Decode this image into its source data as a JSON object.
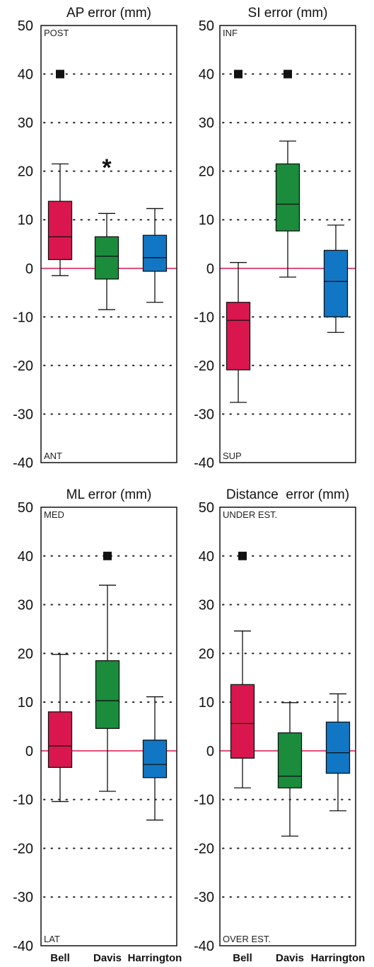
{
  "chart_data": [
    {
      "type": "box",
      "title": "AP error (mm)",
      "top_label": "POST",
      "bottom_label": "ANT",
      "ylim": [
        -40,
        50
      ],
      "yticks": [
        -40,
        -30,
        -20,
        -10,
        0,
        10,
        20,
        30,
        40,
        50
      ],
      "grid": "dotted horizontal at 10 mm steps",
      "reference_line": 0,
      "categories": [
        "Bell",
        "Davis",
        "Harrington"
      ],
      "boxes": [
        {
          "category": "Bell",
          "color": "#D9174E",
          "whisker_low": -1.5,
          "q1": 1.8,
          "median": 6.5,
          "q3": 13.8,
          "whisker_high": 21.5,
          "outliers": [
            40
          ]
        },
        {
          "category": "Davis",
          "color": "#1A8C3C",
          "whisker_low": -8.5,
          "q1": -2.2,
          "median": 2.5,
          "q3": 6.5,
          "whisker_high": 11.3,
          "outliers": []
        },
        {
          "category": "Harrington",
          "color": "#1177C4",
          "whisker_low": -7.0,
          "q1": -0.6,
          "median": 2.2,
          "q3": 6.8,
          "whisker_high": 12.3,
          "outliers": []
        }
      ],
      "annotations": [
        {
          "text": "*",
          "category": "Davis",
          "y": 22
        }
      ]
    },
    {
      "type": "box",
      "title": "SI error (mm)",
      "top_label": "INF",
      "bottom_label": "SUP",
      "ylim": [
        -40,
        50
      ],
      "yticks": [
        -40,
        -30,
        -20,
        -10,
        0,
        10,
        20,
        30,
        40,
        50
      ],
      "grid": "dotted horizontal at 10 mm steps",
      "reference_line": 0,
      "categories": [
        "Bell",
        "Davis",
        "Harrington"
      ],
      "boxes": [
        {
          "category": "Bell",
          "color": "#D9174E",
          "whisker_low": -27.6,
          "q1": -20.9,
          "median": -10.7,
          "q3": -7.0,
          "whisker_high": 1.2,
          "outliers": [
            40
          ]
        },
        {
          "category": "Davis",
          "color": "#1A8C3C",
          "whisker_low": -1.8,
          "q1": 7.7,
          "median": 13.2,
          "q3": 21.5,
          "whisker_high": 26.2,
          "outliers": [
            40
          ]
        },
        {
          "category": "Harrington",
          "color": "#1177C4",
          "whisker_low": -13.2,
          "q1": -10.0,
          "median": -2.7,
          "q3": 3.7,
          "whisker_high": 8.9,
          "outliers": []
        }
      ],
      "annotations": []
    },
    {
      "type": "box",
      "title": "ML error (mm)",
      "top_label": "MED",
      "bottom_label": "LAT",
      "ylim": [
        -40,
        50
      ],
      "yticks": [
        -40,
        -30,
        -20,
        -10,
        0,
        10,
        20,
        30,
        40,
        50
      ],
      "grid": "dotted horizontal at 10 mm steps",
      "reference_line": 0,
      "categories": [
        "Bell",
        "Davis",
        "Harrington"
      ],
      "boxes": [
        {
          "category": "Bell",
          "color": "#D9174E",
          "whisker_low": -10.4,
          "q1": -3.4,
          "median": 1.0,
          "q3": 8.0,
          "whisker_high": 19.8,
          "outliers": []
        },
        {
          "category": "Davis",
          "color": "#1A8C3C",
          "whisker_low": -8.3,
          "q1": 4.6,
          "median": 10.3,
          "q3": 18.5,
          "whisker_high": 34.0,
          "outliers": [
            40
          ]
        },
        {
          "category": "Harrington",
          "color": "#1177C4",
          "whisker_low": -14.2,
          "q1": -5.5,
          "median": -2.8,
          "q3": 2.2,
          "whisker_high": 11.1,
          "outliers": []
        }
      ],
      "annotations": []
    },
    {
      "type": "box",
      "title": "Distance  error (mm)",
      "top_label": "UNDER EST.",
      "bottom_label": "OVER EST.",
      "ylim": [
        -40,
        50
      ],
      "yticks": [
        -40,
        -30,
        -20,
        -10,
        0,
        10,
        20,
        30,
        40,
        50
      ],
      "grid": "dotted horizontal at 10 mm steps",
      "reference_line": 0,
      "categories": [
        "Bell",
        "Davis",
        "Harrington"
      ],
      "boxes": [
        {
          "category": "Bell",
          "color": "#D9174E",
          "whisker_low": -7.6,
          "q1": -1.5,
          "median": 5.6,
          "q3": 13.6,
          "whisker_high": 24.6,
          "outliers": [
            40
          ]
        },
        {
          "category": "Davis",
          "color": "#1A8C3C",
          "whisker_low": -17.5,
          "q1": -7.6,
          "median": -5.2,
          "q3": 3.7,
          "whisker_high": 9.9,
          "outliers": []
        },
        {
          "category": "Harrington",
          "color": "#1177C4",
          "whisker_low": -12.3,
          "q1": -4.6,
          "median": -0.4,
          "q3": 5.9,
          "whisker_high": 11.7,
          "outliers": []
        }
      ],
      "annotations": []
    }
  ],
  "colors": {
    "zero_line": "#D9174E",
    "outlier": "#111111",
    "frame": "#111111",
    "grid": "#222222"
  }
}
